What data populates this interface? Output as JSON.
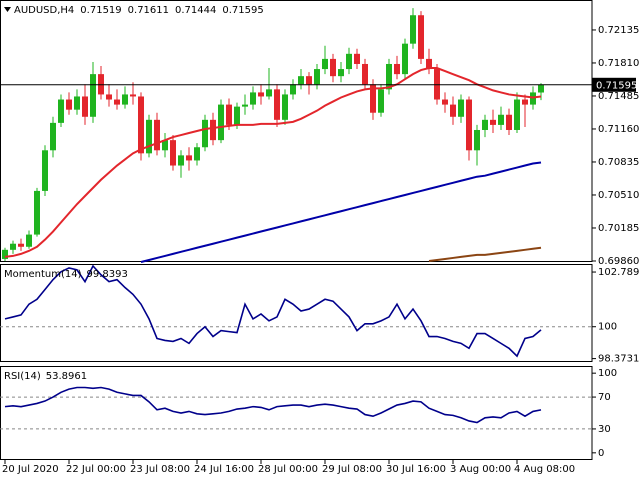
{
  "chart_data": [
    {
      "type": "candlestick",
      "title": "AUDUSD,H4",
      "categories": [
        "20 Jul 2020",
        null,
        null,
        null,
        null,
        null,
        null,
        null,
        "22 Jul 00:00",
        null,
        null,
        null,
        null,
        null,
        null,
        null,
        "23 Jul 08:00",
        null,
        null,
        null,
        null,
        null,
        null,
        null,
        "24 Jul 16:00",
        null,
        null,
        null,
        null,
        null,
        null,
        null,
        "28 Jul 00:00",
        null,
        null,
        null,
        null,
        null,
        null,
        null,
        "29 Jul 08:00",
        null,
        null,
        null,
        null,
        null,
        null,
        null,
        "30 Jul 16:00",
        null,
        null,
        null,
        null,
        null,
        null,
        null,
        "3 Aug 00:00",
        null,
        null,
        null,
        null,
        null,
        null,
        null,
        "4 Aug 08:00",
        null,
        null,
        null
      ],
      "open": [
        0.6988,
        0.6997,
        0.7003,
        0.7,
        0.7012,
        0.7055,
        0.7095,
        0.7122,
        0.7145,
        0.7135,
        0.7148,
        0.7128,
        0.717,
        0.715,
        0.7145,
        0.714,
        0.715,
        0.7148,
        0.7092,
        0.7125,
        0.7095,
        0.7105,
        0.708,
        0.709,
        0.7085,
        0.7098,
        0.7125,
        0.7105,
        0.714,
        0.712,
        0.7138,
        0.714,
        0.7152,
        0.7148,
        0.7155,
        0.7125,
        0.715,
        0.716,
        0.7168,
        0.716,
        0.7175,
        0.7185,
        0.7168,
        0.7175,
        0.719,
        0.718,
        0.716,
        0.7132,
        0.7155,
        0.718,
        0.717,
        0.72,
        0.7228,
        0.7185,
        0.7175,
        0.7145,
        0.714,
        0.7128,
        0.7145,
        0.7095,
        0.7115,
        0.7125,
        0.712,
        0.713,
        0.7115,
        0.7145,
        0.714,
        0.71519
      ],
      "high": [
        0.6999,
        0.7006,
        0.7008,
        0.7016,
        0.7058,
        0.71,
        0.7128,
        0.715,
        0.7152,
        0.7155,
        0.716,
        0.7182,
        0.7178,
        0.716,
        0.7155,
        0.7158,
        0.7162,
        0.7152,
        0.713,
        0.7132,
        0.7112,
        0.711,
        0.7095,
        0.7098,
        0.7102,
        0.713,
        0.7132,
        0.7145,
        0.7146,
        0.7142,
        0.715,
        0.7158,
        0.716,
        0.7176,
        0.716,
        0.7155,
        0.7165,
        0.7175,
        0.7172,
        0.718,
        0.7198,
        0.719,
        0.7182,
        0.7196,
        0.7195,
        0.7185,
        0.7165,
        0.716,
        0.7185,
        0.7188,
        0.7205,
        0.7235,
        0.7232,
        0.7195,
        0.718,
        0.7152,
        0.7148,
        0.715,
        0.7148,
        0.712,
        0.713,
        0.7135,
        0.7138,
        0.7136,
        0.7152,
        0.715,
        0.7158,
        0.71611
      ],
      "low": [
        0.6986,
        0.6993,
        0.6996,
        0.6998,
        0.701,
        0.705,
        0.7088,
        0.7118,
        0.713,
        0.713,
        0.712,
        0.7122,
        0.7145,
        0.7138,
        0.7135,
        0.7136,
        0.714,
        0.7085,
        0.7088,
        0.709,
        0.7088,
        0.7075,
        0.7068,
        0.7075,
        0.708,
        0.7094,
        0.71,
        0.7102,
        0.7115,
        0.7116,
        0.713,
        0.7135,
        0.714,
        0.7145,
        0.7118,
        0.712,
        0.7145,
        0.7155,
        0.715,
        0.7155,
        0.717,
        0.7162,
        0.7162,
        0.717,
        0.7175,
        0.7155,
        0.7125,
        0.7128,
        0.715,
        0.7165,
        0.7165,
        0.7195,
        0.718,
        0.717,
        0.714,
        0.7132,
        0.712,
        0.7122,
        0.7085,
        0.708,
        0.7108,
        0.7112,
        0.7115,
        0.711,
        0.7112,
        0.7118,
        0.7135,
        0.71444
      ],
      "close": [
        0.6997,
        0.7003,
        0.7,
        0.7012,
        0.7055,
        0.7095,
        0.7122,
        0.7145,
        0.7135,
        0.7148,
        0.7128,
        0.717,
        0.715,
        0.7145,
        0.714,
        0.715,
        0.7148,
        0.7092,
        0.7125,
        0.7095,
        0.7105,
        0.708,
        0.709,
        0.7085,
        0.7098,
        0.7125,
        0.7105,
        0.714,
        0.712,
        0.7138,
        0.714,
        0.7152,
        0.7148,
        0.7155,
        0.7125,
        0.715,
        0.716,
        0.7168,
        0.716,
        0.7175,
        0.7185,
        0.7168,
        0.7175,
        0.719,
        0.718,
        0.716,
        0.7132,
        0.7155,
        0.718,
        0.717,
        0.72,
        0.7228,
        0.7185,
        0.7175,
        0.7145,
        0.714,
        0.7128,
        0.7145,
        0.7095,
        0.7115,
        0.7125,
        0.712,
        0.713,
        0.7115,
        0.7145,
        0.714,
        0.7152,
        0.71595
      ],
      "up_color": "#1fb41f",
      "down_color": "#e3262c",
      "moving_averages": [
        {
          "color": "#e3262c",
          "values": [
            0.699,
            0.6991,
            0.6993,
            0.6996,
            0.7,
            0.7007,
            0.7015,
            0.7024,
            0.7033,
            0.7042,
            0.705,
            0.7058,
            0.7066,
            0.7073,
            0.708,
            0.7086,
            0.7092,
            0.7096,
            0.7099,
            0.7102,
            0.7105,
            0.7108,
            0.711,
            0.7112,
            0.7114,
            0.7116,
            0.7117,
            0.7118,
            0.7119,
            0.712,
            0.712,
            0.712,
            0.7121,
            0.7121,
            0.7121,
            0.7122,
            0.7123,
            0.7126,
            0.713,
            0.7134,
            0.7139,
            0.7143,
            0.7147,
            0.715,
            0.7153,
            0.7155,
            0.7156,
            0.7156,
            0.7157,
            0.716,
            0.7165,
            0.717,
            0.7174,
            0.7176,
            0.7176,
            0.7173,
            0.717,
            0.7167,
            0.7164,
            0.716,
            0.7157,
            0.7154,
            0.7152,
            0.715,
            0.7149,
            0.7148,
            0.7147,
            0.7148
          ]
        },
        {
          "color": "#0000a8",
          "values": [
            null,
            null,
            null,
            null,
            null,
            null,
            null,
            null,
            null,
            null,
            null,
            null,
            null,
            null,
            null,
            null,
            null,
            0.6985,
            0.6987,
            0.6989,
            0.6991,
            0.6993,
            0.6995,
            0.6997,
            0.6999,
            0.7001,
            0.7003,
            0.7005,
            0.7007,
            0.7009,
            0.7011,
            0.7013,
            0.7015,
            0.7017,
            0.7019,
            0.7021,
            0.7023,
            0.7025,
            0.7027,
            0.7029,
            0.7031,
            0.7033,
            0.7035,
            0.7037,
            0.7039,
            0.7041,
            0.7043,
            0.7045,
            0.7047,
            0.7049,
            0.7051,
            0.7053,
            0.7055,
            0.7057,
            0.7059,
            0.7061,
            0.7063,
            0.7065,
            0.7067,
            0.7069,
            0.707,
            0.7072,
            0.7074,
            0.7076,
            0.7078,
            0.708,
            0.7082,
            0.7083
          ]
        },
        {
          "color": "#8b4513",
          "values": [
            null,
            null,
            null,
            null,
            null,
            null,
            null,
            null,
            null,
            null,
            null,
            null,
            null,
            null,
            null,
            null,
            null,
            null,
            null,
            null,
            null,
            null,
            null,
            null,
            null,
            null,
            null,
            null,
            null,
            null,
            null,
            null,
            null,
            null,
            null,
            null,
            null,
            null,
            null,
            null,
            null,
            null,
            null,
            null,
            null,
            null,
            null,
            null,
            null,
            null,
            null,
            null,
            null,
            0.6986,
            0.6987,
            0.6988,
            0.6989,
            0.699,
            0.6991,
            0.6992,
            0.6992,
            0.6993,
            0.6994,
            0.6995,
            0.6996,
            0.6997,
            0.6998,
            0.6999
          ]
        }
      ],
      "ylim": [
        0.6985,
        0.7243
      ],
      "yticks": [
        0.72135,
        {
          "value": 0.7181,
          "label": "0.71810"
        },
        0.71485,
        {
          "value": 0.7116,
          "label": "0.71160"
        },
        0.70835,
        {
          "value": 0.7051,
          "label": "0.70510"
        },
        0.70185,
        {
          "value": 0.6986,
          "label": "0.69860"
        }
      ]
    },
    {
      "type": "line",
      "title": "Momentum(14)",
      "color": "#00008b",
      "values": [
        100.4,
        100.5,
        100.6,
        101.15,
        101.4,
        101.9,
        102.4,
        102.8,
        103.0,
        102.9,
        102.3,
        103.1,
        102.65,
        102.3,
        102.4,
        102.0,
        101.65,
        101.15,
        100.4,
        99.4,
        99.3,
        99.25,
        99.4,
        99.15,
        99.65,
        100.0,
        99.5,
        99.8,
        99.75,
        99.7,
        101.15,
        100.4,
        100.65,
        100.3,
        100.5,
        101.4,
        101.15,
        100.8,
        100.9,
        101.15,
        101.4,
        101.3,
        100.9,
        100.5,
        99.8,
        100.15,
        100.15,
        100.3,
        100.5,
        101.15,
        100.4,
        100.9,
        100.3,
        99.5,
        99.5,
        99.4,
        99.25,
        99.15,
        98.9,
        99.65,
        99.65,
        99.4,
        99.15,
        98.9,
        98.5,
        99.4,
        99.5,
        99.8393
      ],
      "ylim": [
        98.2,
        103.2
      ],
      "yticks": [
        102.7897,
        100,
        98.3731
      ],
      "levels": [
        100
      ]
    },
    {
      "type": "line",
      "title": "RSI(14)",
      "color": "#00008b",
      "values": [
        58,
        59,
        58,
        60,
        62,
        65,
        70,
        76,
        80,
        82,
        82,
        81,
        82,
        80,
        76,
        74,
        72,
        72,
        64,
        54,
        56,
        52,
        50,
        52,
        49,
        48,
        49,
        50,
        52,
        55,
        56,
        58,
        57,
        54,
        58,
        59,
        60,
        60,
        58,
        60,
        61,
        60,
        58,
        56,
        55,
        48,
        46,
        50,
        55,
        60,
        62,
        65,
        64,
        56,
        52,
        48,
        47,
        44,
        40,
        38,
        44,
        45,
        44,
        50,
        52,
        46,
        52,
        53.8961
      ],
      "ylim": [
        -9,
        109
      ],
      "yticks": [
        100,
        70,
        30,
        0
      ],
      "levels": [
        70,
        30
      ]
    }
  ]
}
